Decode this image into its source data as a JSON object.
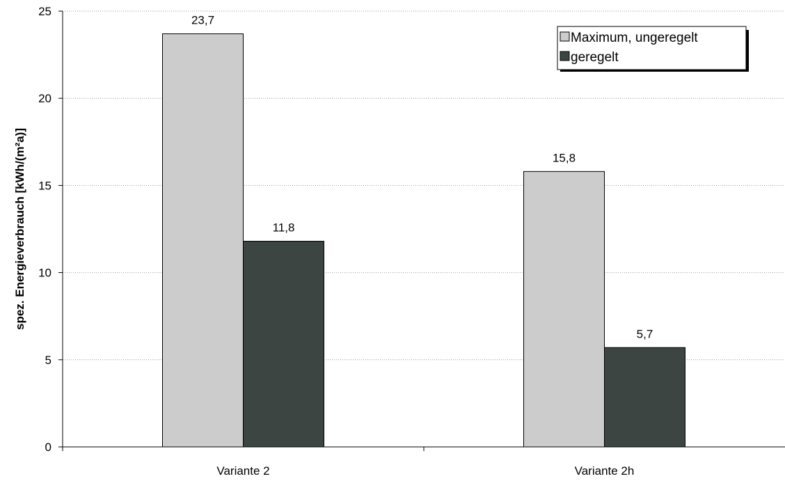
{
  "chart_data": {
    "type": "bar",
    "title": "",
    "xlabel": "",
    "ylabel": "spez. Energieverbrauch [kWh/(m²a)]",
    "categories": [
      "Variante 2",
      "Variante 2h"
    ],
    "series": [
      {
        "name": "Maximum, ungeregelt",
        "values": [
          23.7,
          15.8
        ],
        "labels": [
          "23,7",
          "15,8"
        ],
        "color": "#cccccc"
      },
      {
        "name": "geregelt",
        "values": [
          11.8,
          5.7
        ],
        "labels": [
          "11,8",
          "5,7"
        ],
        "color": "#3d4543"
      }
    ],
    "ylim": [
      0,
      25
    ],
    "yticks": [
      0,
      5,
      10,
      15,
      20,
      25
    ],
    "ytick_labels": [
      "0",
      "5",
      "10",
      "15",
      "20",
      "25"
    ],
    "grid": true,
    "legend_position": "top-right"
  }
}
